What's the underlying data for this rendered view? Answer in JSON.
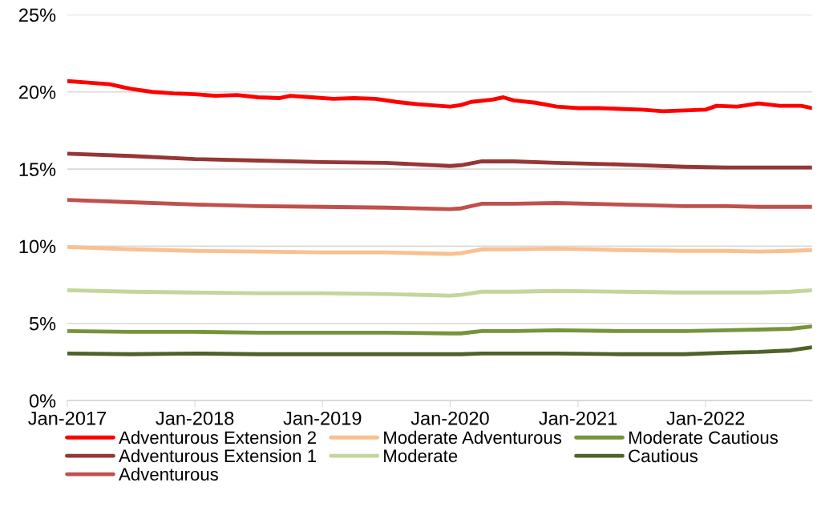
{
  "chart_data": {
    "type": "line",
    "x": [
      "2017-01",
      "2017-07",
      "2018-01",
      "2018-07",
      "2019-01",
      "2019-07",
      "2020-01",
      "2020-02",
      "2020-04",
      "2020-07",
      "2020-11",
      "2021-05",
      "2021-11",
      "2022-03",
      "2022-06",
      "2022-09",
      "2022-11"
    ],
    "series": [
      {
        "name": "Adventurous Extension 2",
        "color": "#ff0000",
        "x": [
          "2017-01",
          "2017-03",
          "2017-05",
          "2017-07",
          "2017-09",
          "2017-11",
          "2018-01",
          "2018-03",
          "2018-05",
          "2018-07",
          "2018-09",
          "2018-10",
          "2018-12",
          "2019-02",
          "2019-04",
          "2019-06",
          "2019-08",
          "2019-10",
          "2019-12",
          "2020-01",
          "2020-02",
          "2020-03",
          "2020-05",
          "2020-06",
          "2020-07",
          "2020-09",
          "2020-11",
          "2021-01",
          "2021-03",
          "2021-05",
          "2021-07",
          "2021-09",
          "2021-11",
          "2022-01",
          "2022-02",
          "2022-04",
          "2022-06",
          "2022-08",
          "2022-10",
          "2022-11"
        ],
        "values": [
          20.7,
          20.6,
          20.5,
          20.2,
          20.0,
          19.9,
          19.85,
          19.75,
          19.8,
          19.65,
          19.6,
          19.75,
          19.65,
          19.55,
          19.6,
          19.55,
          19.35,
          19.2,
          19.1,
          19.05,
          19.15,
          19.35,
          19.5,
          19.65,
          19.45,
          19.3,
          19.05,
          18.95,
          18.95,
          18.9,
          18.85,
          18.75,
          18.8,
          18.85,
          19.1,
          19.05,
          19.25,
          19.1,
          19.1,
          18.95
        ]
      },
      {
        "name": "Adventurous Extension 1",
        "color": "#953735",
        "values": [
          16.0,
          15.85,
          15.65,
          15.55,
          15.45,
          15.4,
          15.2,
          15.25,
          15.5,
          15.5,
          15.4,
          15.3,
          15.15,
          15.1,
          15.1,
          15.1,
          15.1
        ]
      },
      {
        "name": "Adventurous",
        "color": "#c0504d",
        "values": [
          13.0,
          12.85,
          12.7,
          12.6,
          12.55,
          12.5,
          12.4,
          12.45,
          12.75,
          12.75,
          12.8,
          12.7,
          12.6,
          12.6,
          12.55,
          12.55,
          12.55
        ]
      },
      {
        "name": "Moderate Adventurous",
        "color": "#fac090",
        "values": [
          9.95,
          9.8,
          9.7,
          9.65,
          9.6,
          9.6,
          9.5,
          9.55,
          9.8,
          9.8,
          9.85,
          9.75,
          9.7,
          9.7,
          9.65,
          9.7,
          9.75
        ]
      },
      {
        "name": "Moderate",
        "color": "#c3d69b",
        "values": [
          7.15,
          7.05,
          7.0,
          6.95,
          6.95,
          6.9,
          6.8,
          6.85,
          7.05,
          7.05,
          7.1,
          7.05,
          7.0,
          7.0,
          7.0,
          7.05,
          7.15
        ]
      },
      {
        "name": "Moderate Cautious",
        "color": "#77933c",
        "values": [
          4.5,
          4.45,
          4.45,
          4.4,
          4.4,
          4.4,
          4.35,
          4.35,
          4.5,
          4.5,
          4.55,
          4.5,
          4.5,
          4.55,
          4.6,
          4.65,
          4.8
        ]
      },
      {
        "name": "Cautious",
        "color": "#4f6228",
        "values": [
          3.05,
          3.0,
          3.05,
          3.0,
          3.0,
          3.0,
          3.0,
          3.0,
          3.05,
          3.05,
          3.05,
          3.0,
          3.0,
          3.1,
          3.15,
          3.25,
          3.45
        ]
      }
    ],
    "xlim": [
      "2017-01",
      "2022-11"
    ],
    "xticks": [
      {
        "value": "2017-01",
        "label": "Jan-2017"
      },
      {
        "value": "2018-01",
        "label": "Jan-2018"
      },
      {
        "value": "2019-01",
        "label": "Jan-2019"
      },
      {
        "value": "2020-01",
        "label": "Jan-2020"
      },
      {
        "value": "2021-01",
        "label": "Jan-2021"
      },
      {
        "value": "2022-01",
        "label": "Jan-2022"
      }
    ],
    "ylim": [
      0,
      25
    ],
    "yticks": [
      {
        "value": 0,
        "label": "0%"
      },
      {
        "value": 5,
        "label": "5%"
      },
      {
        "value": 10,
        "label": "10%"
      },
      {
        "value": 15,
        "label": "15%"
      },
      {
        "value": 20,
        "label": "20%"
      },
      {
        "value": 25,
        "label": "25%"
      }
    ],
    "grid": "y",
    "legend": "bottom",
    "marker": "none",
    "line_style": "solid"
  }
}
